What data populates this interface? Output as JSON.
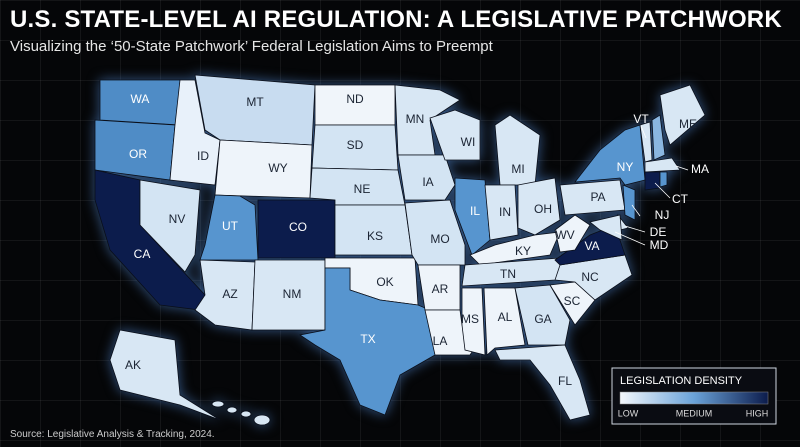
{
  "header": {
    "title": "U.S. STATE-LEVEL AI REGULATION: A LEGISLATIVE PATCHWORK",
    "subtitle": "Visualizing the ‘50-State Patchwork’ Federal Legislation Aims to Preempt"
  },
  "map": {
    "states": [
      {
        "label": "WA",
        "color": "#4f8cc6"
      },
      {
        "label": "OR",
        "color": "#4f8cc6"
      },
      {
        "label": "CA",
        "color": "#0c1c4c"
      },
      {
        "label": "NV",
        "color": "#d3e4f3"
      },
      {
        "label": "ID",
        "color": "#e8f1fa"
      },
      {
        "label": "MT",
        "color": "#c8dcf0"
      },
      {
        "label": "WY",
        "color": "#eef4fa"
      },
      {
        "label": "UT",
        "color": "#5795cf"
      },
      {
        "label": "CO",
        "color": "#0c1c4c"
      },
      {
        "label": "AZ",
        "color": "#d8e7f4"
      },
      {
        "label": "NM",
        "color": "#d8e7f4"
      },
      {
        "label": "ND",
        "color": "#f0f5fa"
      },
      {
        "label": "SD",
        "color": "#d3e4f3"
      },
      {
        "label": "NE",
        "color": "#d3e4f3"
      },
      {
        "label": "KS",
        "color": "#d3e4f3"
      },
      {
        "label": "OK",
        "color": "#eef4fa"
      },
      {
        "label": "TX",
        "color": "#5795cf"
      },
      {
        "label": "MN",
        "color": "#d8e7f4"
      },
      {
        "label": "IA",
        "color": "#d3e4f3"
      },
      {
        "label": "MO",
        "color": "#d3e4f3"
      },
      {
        "label": "AR",
        "color": "#eef4fa"
      },
      {
        "label": "LA",
        "color": "#eef4fa"
      },
      {
        "label": "WI",
        "color": "#d8e7f4"
      },
      {
        "label": "IL",
        "color": "#5795cf"
      },
      {
        "label": "MI",
        "color": "#d8e7f4"
      },
      {
        "label": "IN",
        "color": "#d8e7f4"
      },
      {
        "label": "OH",
        "color": "#d8e7f4"
      },
      {
        "label": "KY",
        "color": "#eef4fa"
      },
      {
        "label": "TN",
        "color": "#d8e7f4"
      },
      {
        "label": "MS",
        "color": "#eef4fa"
      },
      {
        "label": "AL",
        "color": "#eef4fa"
      },
      {
        "label": "GA",
        "color": "#d3e4f3"
      },
      {
        "label": "FL",
        "color": "#d8e7f4"
      },
      {
        "label": "SC",
        "color": "#eef4fa"
      },
      {
        "label": "NC",
        "color": "#d8e7f4"
      },
      {
        "label": "VA",
        "color": "#0c1c4c"
      },
      {
        "label": "WV",
        "color": "#eef4fa"
      },
      {
        "label": "PA",
        "color": "#d8e7f4"
      },
      {
        "label": "NY",
        "color": "#5795cf"
      },
      {
        "label": "NJ",
        "color": "#5795cf"
      },
      {
        "label": "DE",
        "color": "#d8e7f4"
      },
      {
        "label": "MD",
        "color": "#d8e7f4"
      },
      {
        "label": "VT",
        "color": "#d8e7f4"
      },
      {
        "label": null,
        "color": "#8ab6e0"
      },
      {
        "label": "ME",
        "color": "#d8e7f4"
      },
      {
        "label": "MA",
        "color": "#d8e7f4"
      },
      {
        "label": "CT",
        "color": "#0c1c4c"
      },
      {
        "label": null,
        "color": "#5795cf"
      },
      {
        "label": "AK",
        "color": "#d8e7f4"
      }
    ]
  },
  "legend": {
    "title": "LEGISLATION DENSITY",
    "low": "LOW",
    "medium": "MEDIUM",
    "high": "HIGH",
    "colors": [
      "#f4f8fc",
      "#6aa2d8",
      "#0c1c4c"
    ]
  },
  "footer": {
    "source": "Source: Legislative Analysis & Tracking, 2024."
  }
}
